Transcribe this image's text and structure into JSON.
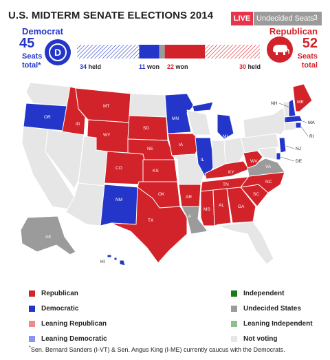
{
  "header": {
    "title": "U.S. MIDTERM SENATE ELECTIONS 2014",
    "live_label": "LIVE",
    "undecided_label": "Undecided Seats",
    "undecided_count": "3"
  },
  "democrat": {
    "name": "Democrat",
    "total": "45",
    "seats_line1": "Seats",
    "seats_line2": "total*",
    "held_num": "34",
    "held_label": "held",
    "won_num": "11",
    "won_label": "won",
    "held": 34,
    "won": 11
  },
  "republican": {
    "name": "Republican",
    "total": "52",
    "seats_line1": "Seats",
    "seats_line2": "total",
    "won_num": "22",
    "won_label": "won",
    "held_num": "30",
    "held_label": "held",
    "won": 22,
    "held": 30
  },
  "undecided": {
    "count": 3
  },
  "colors": {
    "republican": "#d2232a",
    "democratic": "#2436c9",
    "leaning_republican": "#f08a8a",
    "leaning_democratic": "#8b95f0",
    "independent": "#1a7a1a",
    "undecided": "#9b9b9b",
    "leaning_independent": "#8fbf8f",
    "not_voting": "#e6e6e6"
  },
  "map": {
    "labels": {
      "WA": "",
      "OR": "OR",
      "CA": "",
      "ID": "ID",
      "NV": "",
      "MT": "MT",
      "WY": "WY",
      "UT": "",
      "AZ": "",
      "CO": "CO",
      "NM": "NM",
      "ND": "",
      "SD": "SD",
      "NE": "NE",
      "KS": "KS",
      "OK": "OK",
      "TX": "TX",
      "MN": "MN",
      "IA": "IA",
      "MO": "",
      "AR": "AR",
      "LA": "LA",
      "WI": "",
      "IL": "IL",
      "MI": "MI",
      "IN": "",
      "OH": "",
      "KY": "KY",
      "TN": "TN",
      "MS": "MS",
      "AL": "AL",
      "GA": "GA",
      "FL": "",
      "SC": "SC",
      "NC": "NC",
      "VA": "VA",
      "WV": "WV",
      "PA": "",
      "NY": "",
      "ME": "ME",
      "NH": "NH",
      "MA": "MA",
      "RI": "RI",
      "NJ": "NJ",
      "DE": "DE",
      "AK": "AK",
      "HI": "HI"
    }
  },
  "legend": [
    {
      "label": "Republican",
      "color": "#d2232a"
    },
    {
      "label": "Democratic",
      "color": "#2436c9"
    },
    {
      "label": "Leaning Republican",
      "color": "#f08a8a"
    },
    {
      "label": "Leaning Democratic",
      "color": "#8b95f0"
    },
    {
      "label": "Independent",
      "color": "#1a7a1a"
    },
    {
      "label": "Undecided States",
      "color": "#9b9b9b"
    },
    {
      "label": "Leaning Independent",
      "color": "#8fbf8f"
    },
    {
      "label": "Not voting",
      "color": "#e6e6e6"
    }
  ],
  "footnote": "Sen. Bernard Sanders (I-VT) & Sen. Angus King (I-ME) currently caucus with the Democrats."
}
